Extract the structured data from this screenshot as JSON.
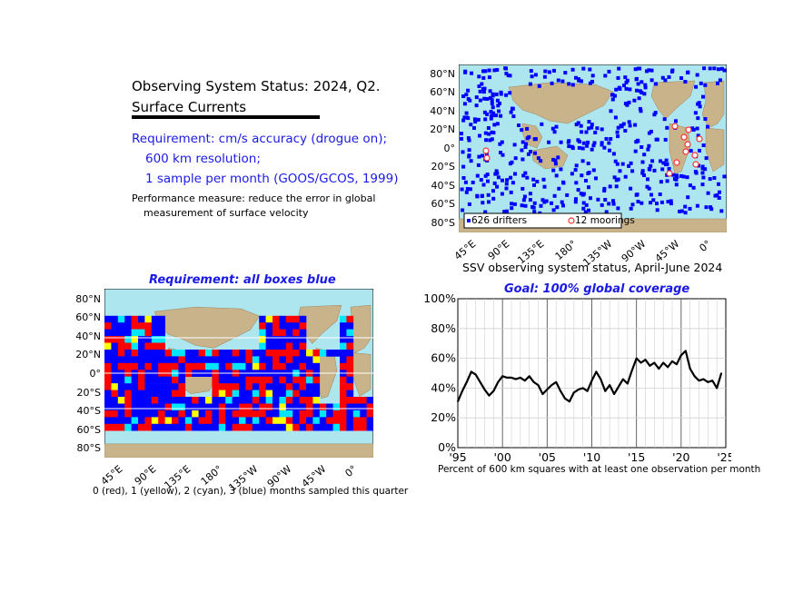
{
  "header": {
    "title": "Observing System Status: 2024, Q2.",
    "subtitle": "Surface Currents",
    "req1": "Requirement:  cm/s accuracy (drogue on);",
    "req2": "600 km resolution;",
    "req3": "1 sample per month (GOOS/GCOS, 1999)",
    "perf1": "Performance measure: reduce the error in global",
    "perf2": "measurement of surface velocity"
  },
  "map_ticks": {
    "lat": [
      "80°N",
      "60°N",
      "40°N",
      "20°N",
      "0°",
      "20°S",
      "40°S",
      "60°S",
      "80°S"
    ],
    "lon": [
      "45°E",
      "90°E",
      "135°E",
      "180°",
      "135°W",
      "90°W",
      "45°W",
      "0°"
    ]
  },
  "map1": {
    "legend_drifters": "626 drifters",
    "legend_moorings": "12 moorings",
    "caption": "SSV observing system status, April-June 2024",
    "colors": {
      "ocean": "#aee6f0",
      "land": "#c9b38a",
      "drifter": "#0000ff",
      "mooring": "#ff3030"
    }
  },
  "map2": {
    "title": "Requirement: all boxes blue",
    "caption": "0 (red), 1 (yellow), 2 (cyan), 3 (blue) months sampled this quarter",
    "colors": {
      "0": "#ff0000",
      "1": "#ffff00",
      "2": "#00e5ff",
      "3": "#0000ff"
    }
  },
  "chart_data": {
    "type": "line",
    "title": "Goal: 100% global coverage",
    "xlabel": "Percent of 600 km squares with at least one observation per month",
    "ylabel": "",
    "xlim": [
      1995,
      2025
    ],
    "ylim": [
      0,
      100
    ],
    "x_tick_labels": [
      "'95",
      "'00",
      "'05",
      "'10",
      "'15",
      "'20",
      "'25"
    ],
    "y_tick_labels": [
      "0%",
      "20%",
      "40%",
      "60%",
      "80%",
      "100%"
    ],
    "grid": true,
    "series": [
      {
        "x": [
          1995.0,
          1995.5,
          1996.0,
          1996.5,
          1997.0,
          1997.5,
          1998.0,
          1998.5,
          1999.0,
          1999.5,
          2000.0,
          2000.5,
          2001.0,
          2001.5,
          2002.0,
          2002.5,
          2003.0,
          2003.5,
          2004.0,
          2004.5,
          2005.0,
          2005.5,
          2006.0,
          2006.5,
          2007.0,
          2007.5,
          2008.0,
          2008.5,
          2009.0,
          2009.5,
          2010.0,
          2010.5,
          2011.0,
          2011.5,
          2012.0,
          2012.5,
          2013.0,
          2013.5,
          2014.0,
          2014.5,
          2015.0,
          2015.5,
          2016.0,
          2016.5,
          2017.0,
          2017.5,
          2018.0,
          2018.5,
          2019.0,
          2019.5,
          2020.0,
          2020.5,
          2021.0,
          2021.5,
          2022.0,
          2022.5,
          2023.0,
          2023.5,
          2024.0,
          2024.5
        ],
        "values": [
          31,
          38,
          44,
          51,
          49,
          44,
          39,
          35,
          38,
          44,
          48,
          47,
          47,
          46,
          47,
          45,
          48,
          44,
          42,
          36,
          39,
          42,
          44,
          38,
          33,
          31,
          37,
          39,
          40,
          38,
          45,
          51,
          46,
          38,
          42,
          36,
          41,
          46,
          43,
          52,
          60,
          57,
          59,
          55,
          57,
          53,
          57,
          54,
          58,
          56,
          62,
          65,
          53,
          48,
          45,
          46,
          44,
          45,
          40,
          50
        ]
      }
    ]
  }
}
